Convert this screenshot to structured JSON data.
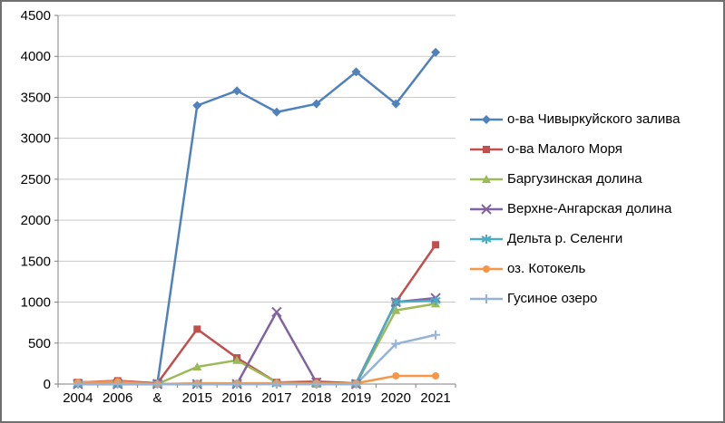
{
  "chart_data": {
    "type": "line",
    "title": "",
    "xlabel": "",
    "ylabel": "",
    "ylim": [
      0,
      4500
    ],
    "ytick_step": 500,
    "yticks": [
      0,
      500,
      1000,
      1500,
      2000,
      2500,
      3000,
      3500,
      4000,
      4500
    ],
    "grid": "horizontal",
    "legend_position": "right",
    "categories": [
      "2004",
      "2006",
      "&",
      "2015",
      "2016",
      "2017",
      "2018",
      "2019",
      "2020",
      "2021"
    ],
    "series": [
      {
        "name": "о-ва Чивыркуйского залива",
        "marker": "diamond",
        "color": "#4F81BD",
        "values": [
          10,
          30,
          10,
          3400,
          3580,
          3320,
          3420,
          3810,
          3420,
          4050
        ]
      },
      {
        "name": "о-ва Малого Моря",
        "marker": "square",
        "color": "#C0504D",
        "values": [
          20,
          40,
          10,
          670,
          320,
          20,
          30,
          10,
          1000,
          1700
        ]
      },
      {
        "name": "Баргузинская долина",
        "marker": "triangle",
        "color": "#9BBB59",
        "values": [
          0,
          0,
          0,
          210,
          290,
          20,
          0,
          0,
          900,
          980
        ]
      },
      {
        "name": "Верхне-Ангарская долина",
        "marker": "x",
        "color": "#8064A2",
        "values": [
          0,
          0,
          0,
          0,
          0,
          880,
          20,
          0,
          1000,
          1050
        ]
      },
      {
        "name": "Дельта р. Селенги",
        "marker": "asterisk",
        "color": "#4BACC6",
        "values": [
          0,
          0,
          0,
          0,
          0,
          0,
          0,
          0,
          1000,
          1020
        ]
      },
      {
        "name": "оз. Котокель",
        "marker": "circle",
        "color": "#F79646",
        "values": [
          20,
          30,
          0,
          10,
          10,
          10,
          10,
          10,
          100,
          100
        ]
      },
      {
        "name": "Гусиное озеро",
        "marker": "plus",
        "color": "#95B3D7",
        "values": [
          0,
          0,
          0,
          0,
          0,
          0,
          0,
          0,
          490,
          600
        ]
      }
    ],
    "colors": {
      "gridline": "#C9C9C9",
      "axis": "#7F7F7F",
      "text": "#000000",
      "frame_border": "#6F6F6F"
    }
  }
}
